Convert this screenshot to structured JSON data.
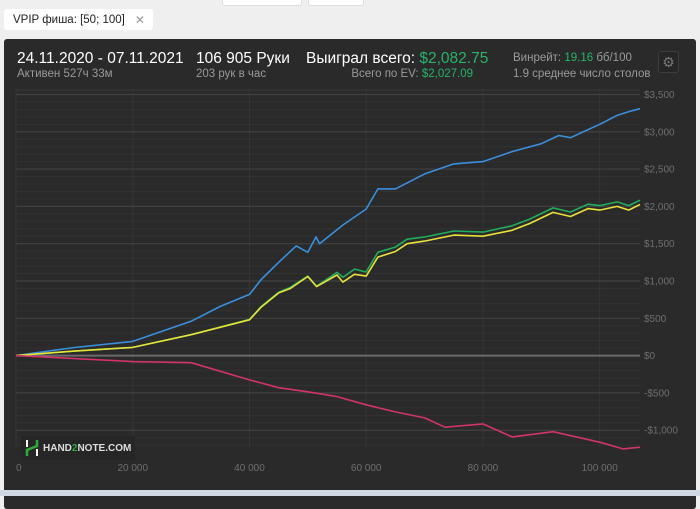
{
  "filter_chip": {
    "label": "VPIP фиша: [50; 100]",
    "close_icon": "close-icon"
  },
  "header": {
    "date_range": "24.11.2020 - 07.11.2021",
    "active": "Активен 527ч 33м",
    "hands": "106 905 Руки",
    "hands_per_hour": "203 рук в час",
    "won_label": "Выиграл всего:",
    "won_value": "$2,082.75",
    "ev_label": "Всего по EV:",
    "ev_value": "$2,027.09",
    "winrate_label": "Винрейт:",
    "winrate_value": "19.16",
    "winrate_unit": "бб/100",
    "tables": "1.9 среднее число столов",
    "settings_icon": "gear-icon"
  },
  "watermark": {
    "text_a": "HAND",
    "text_b": "2",
    "text_c": "NOTE.COM"
  },
  "colors": {
    "blue": "#3a8fdc",
    "green": "#1fae5e",
    "yellow": "#e8e23a",
    "red": "#d0346a",
    "positive": "#27b36a",
    "background": "#2a2a2a"
  },
  "chart_data": {
    "type": "line",
    "xlim": [
      0,
      106905
    ],
    "ylim": [
      -1225,
      3560
    ],
    "x_ticks": [
      0,
      20000,
      40000,
      60000,
      80000,
      100000
    ],
    "x_tick_labels": [
      "0",
      "20 000",
      "40 000",
      "60 000",
      "80 000",
      "100 000"
    ],
    "y_ticks": [
      -1000,
      -500,
      0,
      500,
      1000,
      1500,
      2000,
      2500,
      3000,
      3500
    ],
    "y_tick_labels": [
      "-$1,000",
      "-$500",
      "$0",
      "$500",
      "$1,000",
      "$1,500",
      "$2,000",
      "$2,500",
      "$3,000",
      "$3,500"
    ],
    "grid": true,
    "series": [
      {
        "color": "#3a8fdc",
        "x": [
          0,
          10000,
          20000,
          30000,
          35000,
          40000,
          42000,
          45000,
          48000,
          50000,
          51400,
          52000,
          56000,
          60000,
          62000,
          65000,
          70000,
          75000,
          80000,
          85000,
          90000,
          93000,
          95000,
          100000,
          103000,
          105000,
          106905
        ],
        "y": [
          0,
          108,
          190,
          460,
          660,
          820,
          1020,
          1250,
          1470,
          1385,
          1590,
          1500,
          1750,
          1965,
          2235,
          2235,
          2435,
          2570,
          2600,
          2735,
          2840,
          2950,
          2920,
          3100,
          3220,
          3270,
          3310
        ]
      },
      {
        "color": "#1fae5e",
        "x": [
          0,
          10000,
          20000,
          30000,
          40000,
          42000,
          45000,
          47000,
          50000,
          51500,
          55000,
          56000,
          58000,
          60000,
          62000,
          65000,
          67000,
          70000,
          75000,
          80000,
          85000,
          88000,
          92000,
          95000,
          98000,
          100000,
          103000,
          105000,
          106905
        ],
        "y": [
          0,
          60,
          110,
          280,
          485,
          660,
          850,
          915,
          1065,
          930,
          1115,
          1050,
          1160,
          1120,
          1385,
          1455,
          1560,
          1590,
          1670,
          1655,
          1740,
          1830,
          1980,
          1925,
          2030,
          2010,
          2060,
          2010,
          2083
        ]
      },
      {
        "color": "#e8e23a",
        "x": [
          0,
          10000,
          20000,
          30000,
          40000,
          42000,
          45000,
          47000,
          50000,
          51500,
          55000,
          56000,
          58000,
          60000,
          62000,
          65000,
          67000,
          70000,
          75000,
          80000,
          85000,
          88000,
          92000,
          95000,
          98000,
          100000,
          103000,
          105000,
          106905
        ],
        "y": [
          0,
          60,
          110,
          280,
          480,
          650,
          840,
          900,
          1060,
          925,
          1080,
          985,
          1090,
          1065,
          1320,
          1395,
          1500,
          1535,
          1615,
          1600,
          1680,
          1770,
          1920,
          1865,
          1970,
          1950,
          2000,
          1950,
          2027
        ]
      },
      {
        "color": "#d0346a",
        "x": [
          0,
          10000,
          20000,
          30000,
          40000,
          45000,
          50000,
          55000,
          60000,
          65000,
          70000,
          73500,
          80000,
          85000,
          92000,
          100000,
          104000,
          106905
        ],
        "y": [
          0,
          -40,
          -80,
          -95,
          -325,
          -430,
          -485,
          -550,
          -660,
          -755,
          -835,
          -960,
          -915,
          -1090,
          -1020,
          -1160,
          -1250,
          -1228
        ]
      }
    ]
  }
}
